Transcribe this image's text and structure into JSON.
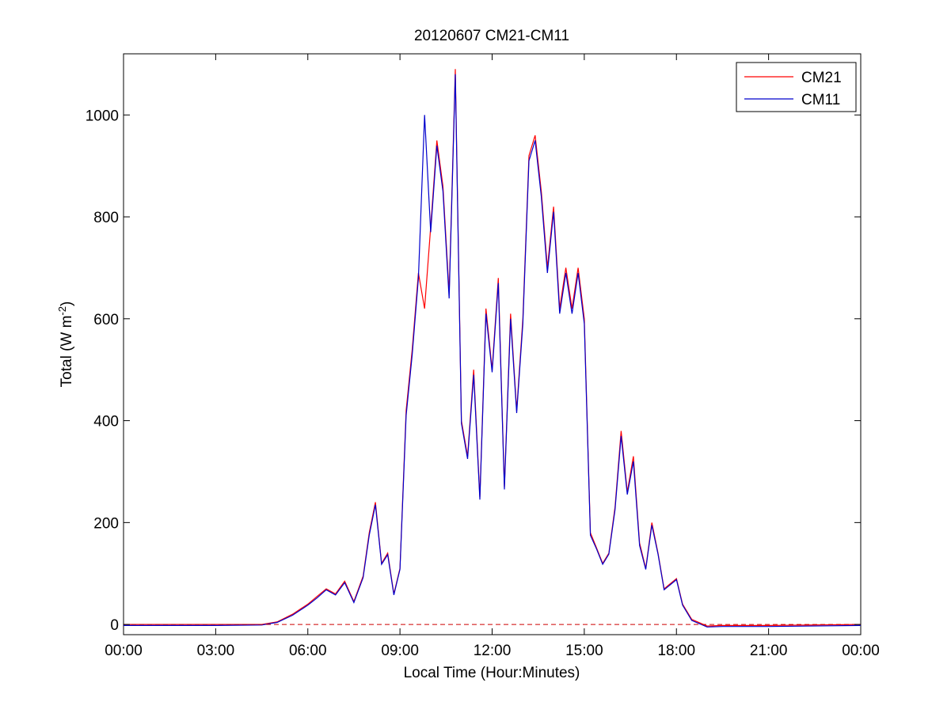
{
  "chart_data": {
    "type": "line",
    "title": "20120607 CM21-CM11",
    "xlabel": "Local Time (Hour:Minutes)",
    "ylabel": {
      "main": "Total (W m",
      "sup": "-2",
      "tail": ")"
    },
    "xlim": [
      0,
      24
    ],
    "ylim": [
      -20,
      1120
    ],
    "x_ticks": [
      0,
      3,
      6,
      9,
      12,
      15,
      18,
      21,
      24
    ],
    "x_tick_labels": [
      "00:00",
      "03:00",
      "06:00",
      "09:00",
      "12:00",
      "15:00",
      "18:00",
      "21:00",
      "00:00"
    ],
    "y_ticks": [
      0,
      200,
      400,
      600,
      800,
      1000
    ],
    "y_tick_labels": [
      "0",
      "200",
      "400",
      "600",
      "800",
      "1000"
    ],
    "grid": false,
    "legend_position": "top-right",
    "reference_line": {
      "y": 0,
      "style": "dashed",
      "color": "#cc0000"
    },
    "series": [
      {
        "name": "CM21",
        "color": "#ff0000",
        "x": [
          0,
          3,
          4.5,
          5,
          5.5,
          6,
          6.3,
          6.6,
          6.9,
          7.2,
          7.5,
          7.8,
          8.0,
          8.2,
          8.4,
          8.6,
          8.8,
          9.0,
          9.2,
          9.4,
          9.6,
          9.8,
          10.0,
          10.2,
          10.4,
          10.6,
          10.8,
          11.0,
          11.2,
          11.4,
          11.6,
          11.8,
          12.0,
          12.2,
          12.4,
          12.6,
          12.8,
          13.0,
          13.2,
          13.4,
          13.6,
          13.8,
          14.0,
          14.2,
          14.4,
          14.6,
          14.8,
          15.0,
          15.2,
          15.4,
          15.6,
          15.8,
          16.0,
          16.2,
          16.4,
          16.6,
          16.8,
          17.0,
          17.2,
          17.4,
          17.6,
          17.8,
          18.0,
          18.2,
          18.5,
          19.0,
          19.5,
          21,
          24
        ],
        "y": [
          0,
          0,
          0,
          5,
          20,
          40,
          55,
          70,
          60,
          85,
          45,
          95,
          180,
          240,
          120,
          140,
          60,
          110,
          420,
          540,
          690,
          620,
          780,
          950,
          860,
          650,
          1090,
          400,
          330,
          500,
          250,
          620,
          500,
          680,
          270,
          610,
          420,
          600,
          920,
          960,
          850,
          700,
          820,
          620,
          700,
          620,
          700,
          600,
          180,
          150,
          120,
          140,
          230,
          380,
          260,
          330,
          160,
          110,
          200,
          140,
          70,
          80,
          90,
          40,
          10,
          -3,
          -2,
          -2,
          0
        ]
      },
      {
        "name": "CM11",
        "color": "#0000cc",
        "x": [
          0,
          3,
          4.5,
          5,
          5.5,
          6,
          6.3,
          6.6,
          6.9,
          7.2,
          7.5,
          7.8,
          8.0,
          8.2,
          8.4,
          8.6,
          8.8,
          9.0,
          9.2,
          9.4,
          9.6,
          9.8,
          10.0,
          10.2,
          10.4,
          10.6,
          10.8,
          11.0,
          11.2,
          11.4,
          11.6,
          11.8,
          12.0,
          12.2,
          12.4,
          12.6,
          12.8,
          13.0,
          13.2,
          13.4,
          13.6,
          13.8,
          14.0,
          14.2,
          14.4,
          14.6,
          14.8,
          15.0,
          15.2,
          15.4,
          15.6,
          15.8,
          16.0,
          16.2,
          16.4,
          16.6,
          16.8,
          17.0,
          17.2,
          17.4,
          17.6,
          17.8,
          18.0,
          18.2,
          18.5,
          19.0,
          19.5,
          21,
          24
        ],
        "y": [
          -2,
          -2,
          -1,
          4,
          18,
          38,
          52,
          68,
          58,
          82,
          43,
          92,
          175,
          235,
          118,
          137,
          58,
          108,
          410,
          530,
          680,
          1000,
          770,
          940,
          850,
          640,
          1080,
          395,
          325,
          490,
          245,
          610,
          495,
          670,
          265,
          600,
          415,
          590,
          910,
          950,
          840,
          690,
          810,
          610,
          690,
          610,
          690,
          590,
          175,
          148,
          118,
          138,
          225,
          370,
          255,
          320,
          155,
          108,
          195,
          138,
          68,
          78,
          88,
          38,
          8,
          -5,
          -4,
          -4,
          -2
        ]
      }
    ]
  }
}
